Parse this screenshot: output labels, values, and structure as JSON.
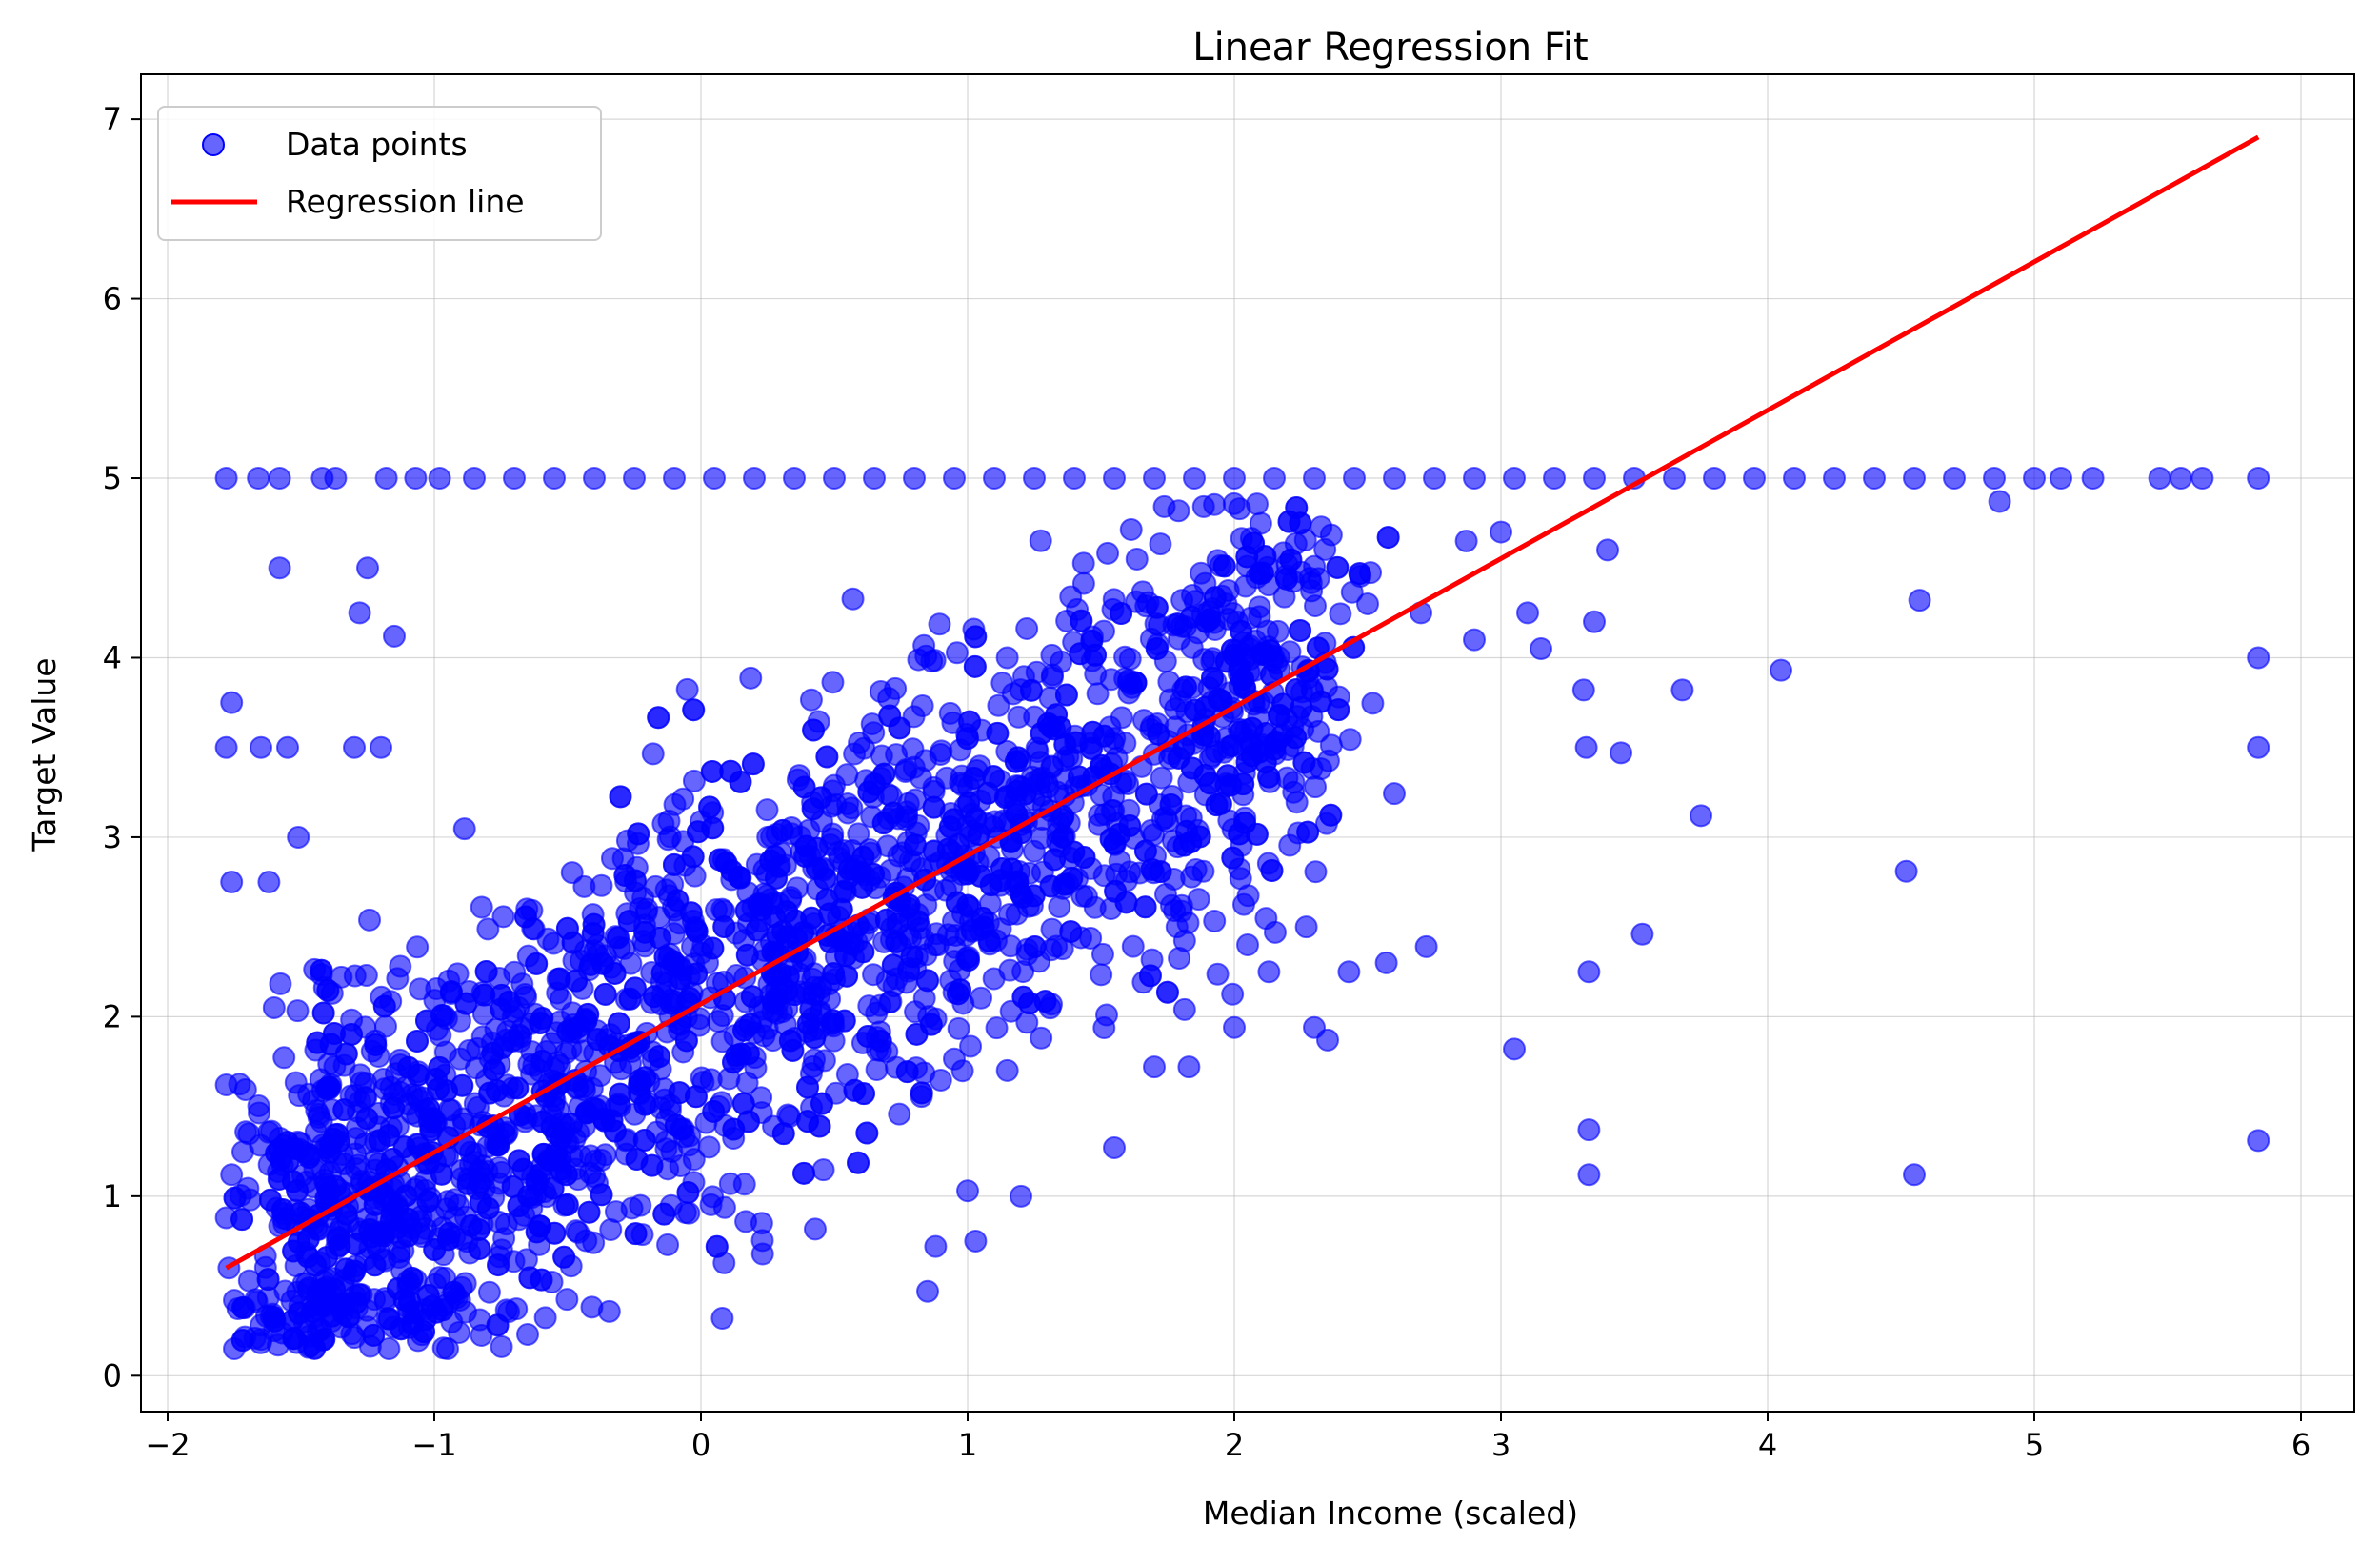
{
  "chart_data": {
    "type": "scatter",
    "title": "Linear Regression Fit",
    "xlabel": "Median Income (scaled)",
    "ylabel": "Target Value",
    "xlim": [
      -2.1,
      6.2
    ],
    "ylim": [
      -0.2,
      7.25
    ],
    "xticks": [
      -2,
      -1,
      0,
      1,
      2,
      3,
      4,
      5,
      6
    ],
    "yticks": [
      0,
      1,
      2,
      3,
      4,
      5,
      6,
      7
    ],
    "grid": true,
    "legend_position": "top-left",
    "colors": {
      "points": "#0000ff",
      "line": "#ff0000"
    },
    "series": [
      {
        "name": "Data points",
        "kind": "scatter",
        "points": [
          [
            -1.78,
            5.0
          ],
          [
            -1.66,
            5.0
          ],
          [
            -1.58,
            5.0
          ],
          [
            -1.42,
            5.0
          ],
          [
            -1.37,
            5.0
          ],
          [
            -1.18,
            5.0
          ],
          [
            -1.07,
            5.0
          ],
          [
            -0.98,
            5.0
          ],
          [
            -0.85,
            5.0
          ],
          [
            -0.7,
            5.0
          ],
          [
            -0.55,
            5.0
          ],
          [
            -0.4,
            5.0
          ],
          [
            -0.25,
            5.0
          ],
          [
            -0.1,
            5.0
          ],
          [
            0.05,
            5.0
          ],
          [
            0.2,
            5.0
          ],
          [
            0.35,
            5.0
          ],
          [
            0.5,
            5.0
          ],
          [
            0.65,
            5.0
          ],
          [
            0.8,
            5.0
          ],
          [
            0.95,
            5.0
          ],
          [
            1.1,
            5.0
          ],
          [
            1.25,
            5.0
          ],
          [
            1.4,
            5.0
          ],
          [
            1.55,
            5.0
          ],
          [
            1.7,
            5.0
          ],
          [
            1.85,
            5.0
          ],
          [
            2.0,
            5.0
          ],
          [
            2.15,
            5.0
          ],
          [
            2.3,
            5.0
          ],
          [
            2.45,
            5.0
          ],
          [
            2.6,
            5.0
          ],
          [
            2.75,
            5.0
          ],
          [
            2.9,
            5.0
          ],
          [
            3.05,
            5.0
          ],
          [
            3.2,
            5.0
          ],
          [
            3.35,
            5.0
          ],
          [
            3.5,
            5.0
          ],
          [
            3.65,
            5.0
          ],
          [
            3.8,
            5.0
          ],
          [
            3.95,
            5.0
          ],
          [
            4.1,
            5.0
          ],
          [
            4.25,
            5.0
          ],
          [
            4.4,
            5.0
          ],
          [
            4.55,
            5.0
          ],
          [
            4.7,
            5.0
          ],
          [
            4.85,
            5.0
          ],
          [
            5.0,
            5.0
          ],
          [
            5.1,
            5.0
          ],
          [
            5.22,
            5.0
          ],
          [
            5.47,
            5.0
          ],
          [
            5.55,
            5.0
          ],
          [
            5.63,
            5.0
          ],
          [
            5.84,
            5.0
          ],
          [
            -1.76,
            3.75
          ],
          [
            -1.78,
            3.5
          ],
          [
            -1.65,
            3.5
          ],
          [
            -1.55,
            3.5
          ],
          [
            -1.3,
            3.5
          ],
          [
            -1.2,
            3.5
          ],
          [
            -1.51,
            3.0
          ],
          [
            -1.76,
            2.75
          ],
          [
            -1.62,
            2.75
          ],
          [
            -1.58,
            4.5
          ],
          [
            -1.25,
            4.5
          ],
          [
            -1.28,
            4.25
          ],
          [
            -1.15,
            4.12
          ],
          [
            -1.78,
            1.62
          ],
          [
            -1.76,
            1.12
          ],
          [
            -1.78,
            0.88
          ],
          [
            -1.77,
            0.6
          ],
          [
            -1.75,
            0.15
          ],
          [
            -1.75,
            0.42
          ],
          [
            -1.6,
            0.25
          ],
          [
            -1.47,
            0.22
          ],
          [
            -1.35,
            0.27
          ],
          [
            -1.17,
            0.15
          ],
          [
            -0.95,
            0.15
          ],
          [
            -0.65,
            0.23
          ],
          [
            0.08,
            0.32
          ],
          [
            0.85,
            0.47
          ],
          [
            0.88,
            0.72
          ],
          [
            1.03,
            0.75
          ],
          [
            1.0,
            1.03
          ],
          [
            1.2,
            1.0
          ],
          [
            1.55,
            1.27
          ],
          [
            1.7,
            1.72
          ],
          [
            1.83,
            1.72
          ],
          [
            2.0,
            1.94
          ],
          [
            2.05,
            2.4
          ],
          [
            2.13,
            2.25
          ],
          [
            2.27,
            2.5
          ],
          [
            2.3,
            1.94
          ],
          [
            2.35,
            1.87
          ],
          [
            2.43,
            2.25
          ],
          [
            2.57,
            2.3
          ],
          [
            2.72,
            2.39
          ],
          [
            2.87,
            4.65
          ],
          [
            3.05,
            1.82
          ],
          [
            3.1,
            4.25
          ],
          [
            3.15,
            4.05
          ],
          [
            3.31,
            3.82
          ],
          [
            3.32,
            3.5
          ],
          [
            3.33,
            2.25
          ],
          [
            3.33,
            1.37
          ],
          [
            3.33,
            1.12
          ],
          [
            3.45,
            3.47
          ],
          [
            3.53,
            2.46
          ],
          [
            3.68,
            3.82
          ],
          [
            3.75,
            3.12
          ],
          [
            4.05,
            3.93
          ],
          [
            4.52,
            2.81
          ],
          [
            4.55,
            1.12
          ],
          [
            4.57,
            4.32
          ],
          [
            4.87,
            4.87
          ],
          [
            5.84,
            4.0
          ],
          [
            5.84,
            3.5
          ],
          [
            5.84,
            1.31
          ],
          [
            2.5,
            4.3
          ],
          [
            2.7,
            4.25
          ],
          [
            2.9,
            4.1
          ],
          [
            3.0,
            4.7
          ],
          [
            3.35,
            4.2
          ],
          [
            3.4,
            4.6
          ]
        ]
      },
      {
        "name": "Regression line",
        "kind": "line",
        "points": [
          [
            -1.78,
            0.6
          ],
          [
            5.84,
            6.9
          ]
        ]
      }
    ]
  }
}
